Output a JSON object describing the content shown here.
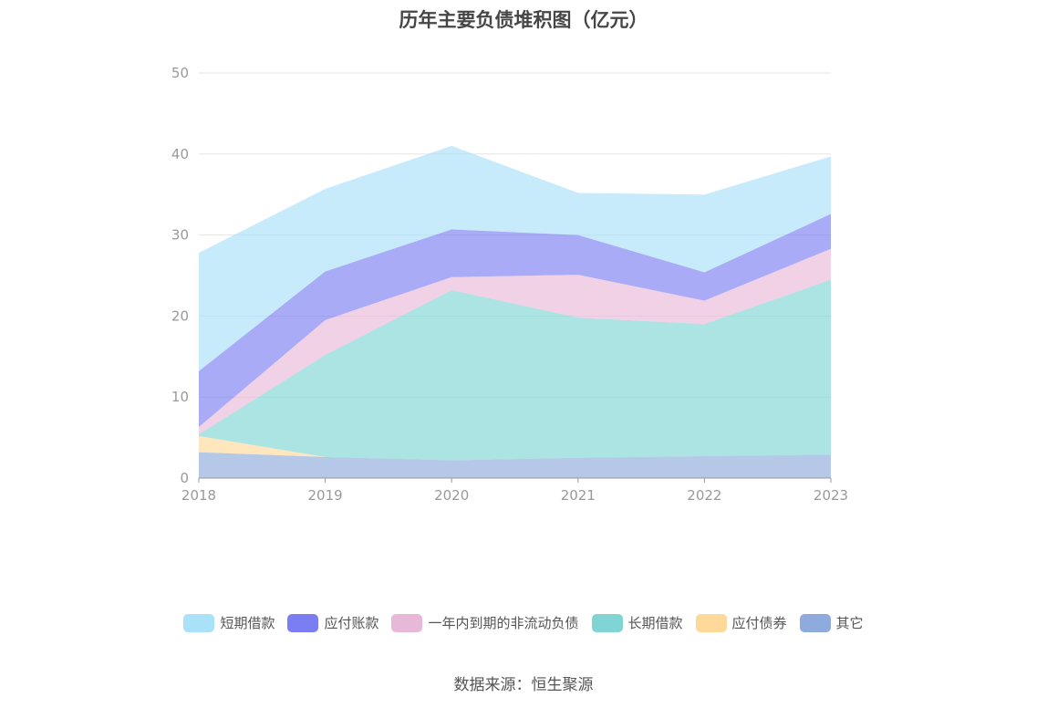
{
  "chart_data": {
    "type": "area",
    "stacked": true,
    "title": "历年主要负债堆积图（亿元）",
    "categories": [
      "2018",
      "2019",
      "2020",
      "2021",
      "2022",
      "2023"
    ],
    "ylim": [
      0,
      50
    ],
    "yticks": [
      0,
      10,
      20,
      30,
      40,
      50
    ],
    "grid": true,
    "legend_position": "bottom",
    "series": [
      {
        "name": "其它",
        "color": "#8faadc",
        "values": [
          3.2,
          2.6,
          2.2,
          2.5,
          2.7,
          2.9
        ]
      },
      {
        "name": "应付债券",
        "color": "#ffd99a",
        "values": [
          2.0,
          0.0,
          0.0,
          0.0,
          0.0,
          0.0
        ]
      },
      {
        "name": "长期借款",
        "color": "#80d4d4",
        "values": [
          0.2,
          12.6,
          21.0,
          17.3,
          16.3,
          21.6
        ]
      },
      {
        "name": "一年内到期的非流动负债",
        "color": "#e8b8d8",
        "values": [
          0.9,
          4.3,
          1.6,
          5.3,
          2.9,
          3.8
        ]
      },
      {
        "name": "应付账款",
        "color": "#7b7ef2",
        "values": [
          6.9,
          6.0,
          5.9,
          4.9,
          3.5,
          4.3
        ]
      },
      {
        "name": "短期借款",
        "color": "#a9e1f8",
        "values": [
          14.6,
          10.2,
          10.3,
          5.2,
          9.6,
          7.1
        ]
      }
    ]
  },
  "legend_items": [
    {
      "name": "短期借款",
      "color": "#a9e1f8"
    },
    {
      "name": "应付账款",
      "color": "#7b7ef2"
    },
    {
      "name": "一年内到期的非流动负债",
      "color": "#e8b8d8"
    },
    {
      "name": "长期借款",
      "color": "#80d4d4"
    },
    {
      "name": "应付债券",
      "color": "#ffd99a"
    },
    {
      "name": "其它",
      "color": "#8faadc"
    }
  ],
  "source": "数据来源：恒生聚源"
}
